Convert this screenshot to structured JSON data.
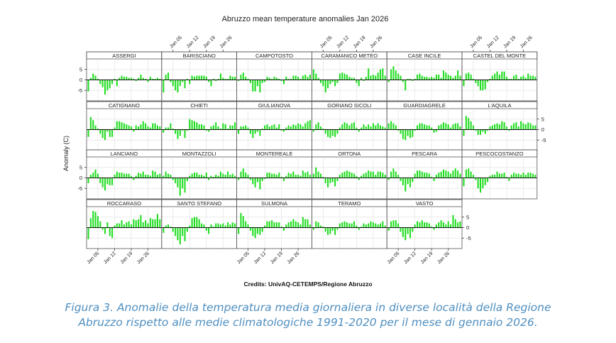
{
  "chart_data": {
    "type": "bar",
    "title": "Abruzzo mean temperature anomalies Jan 2026",
    "ylabel": "Anomaly (C)",
    "xlabel": "",
    "credits": "Credits: UnivAQ-CETEMPS/Regione Abruzzo",
    "ylim": [
      -10,
      10
    ],
    "yticks": [
      -5,
      0,
      5
    ],
    "ytick_labels": [
      "-5",
      "0",
      "5"
    ],
    "xlim": [
      1,
      31
    ],
    "xticks": [
      5,
      12,
      19,
      26
    ],
    "xtick_labels": [
      "Jan 05",
      "Jan 12",
      "Jan 19",
      "Jan 26"
    ],
    "bar_color": "#22dd22",
    "panels": [
      {
        "station": "ASSERGI",
        "values": [
          -5.5,
          1,
          3,
          2,
          0.5,
          -2,
          -3.5,
          -7,
          -5,
          -4,
          -2,
          0.5,
          -3,
          1,
          2,
          1.5,
          1.5,
          1,
          1,
          0.5,
          -0.5,
          1,
          2.5,
          1,
          0.5,
          -1,
          1.5,
          0.5,
          0.5,
          1,
          0.5
        ]
      },
      {
        "station": "BARISCIANO",
        "values": [
          -6,
          2.5,
          3.5,
          -1,
          -3,
          -5,
          -6,
          -3,
          -1,
          -4,
          0.5,
          -2,
          2,
          1.5,
          2,
          2,
          2,
          2,
          1.5,
          -1,
          -3,
          0.5,
          -0.5,
          0.5,
          3,
          1,
          0.5,
          0.5,
          2,
          1.5,
          1.5
        ]
      },
      {
        "station": "CAMPOTOSTO",
        "values": [
          -0.5,
          2.5,
          3.5,
          1.5,
          0.5,
          -1.5,
          -5.5,
          -5.5,
          -3,
          -6,
          -1.5,
          -1,
          1.5,
          1,
          0.5,
          1.5,
          1,
          0.5,
          -0.5,
          -2,
          1.5,
          0.5,
          0.5,
          2,
          2,
          1.5,
          0.5,
          2,
          2.5,
          1.5,
          2.5
        ]
      },
      {
        "station": "CARAMANICO METEO",
        "values": [
          5,
          3,
          1,
          -1.5,
          -3,
          -6,
          -4,
          -2,
          -1,
          -3,
          -1.5,
          3,
          3.5,
          3,
          2.5,
          1.5,
          1,
          1,
          -1.5,
          -3,
          1,
          -0.5,
          1.5,
          5.5,
          2,
          2.5,
          2,
          3.5,
          5,
          5.5,
          2
        ]
      },
      {
        "station": "CASE INCILE",
        "values": [
          -1,
          5,
          6.5,
          4.5,
          3,
          2,
          -1,
          -5,
          0.5,
          0.5,
          -0.5,
          0.5,
          2.5,
          3,
          2,
          1.5,
          1.5,
          1,
          1.5,
          1,
          2.5,
          2.5,
          1,
          4.5,
          3.5,
          2.5,
          2,
          1,
          2,
          4.5,
          2
        ]
      },
      {
        "station": "CASTEL DEL MONTE",
        "values": [
          -3,
          3,
          3.5,
          2.5,
          0.5,
          -1.5,
          -3,
          -5,
          -5,
          -4.5,
          -1,
          0.5,
          2,
          3,
          4,
          2.5,
          4,
          4,
          1.5,
          0.5,
          0.5,
          2,
          2.5,
          0.5,
          1.5,
          2,
          1,
          3,
          2,
          2,
          1.5
        ]
      },
      {
        "station": "CATIGNANO",
        "values": [
          -3.5,
          6,
          4.5,
          2,
          0.5,
          -2,
          -4,
          -5,
          -1,
          -3.5,
          -3.5,
          1,
          4,
          4,
          3.5,
          3,
          2.5,
          2,
          1.5,
          -1,
          2,
          1.5,
          2.5,
          4,
          3,
          1.5,
          1,
          3,
          3,
          2,
          1.5
        ]
      },
      {
        "station": "CHIETI",
        "values": [
          -1.5,
          1,
          1,
          3,
          0.5,
          -2,
          -4.5,
          -3,
          -0.5,
          -4,
          -0.5,
          5,
          4.5,
          4,
          3.5,
          2.5,
          2.5,
          2,
          -0.5,
          -1,
          1.5,
          2,
          3.5,
          1.5,
          0.5,
          3,
          2.5,
          0.5,
          2,
          2,
          3.5
        ]
      },
      {
        "station": "GIULIANOVA",
        "values": [
          -2,
          1.5,
          1.5,
          2,
          1,
          -2,
          -4,
          -2,
          -1,
          -3,
          0.5,
          2,
          2.5,
          1.5,
          2,
          2.5,
          1,
          2.5,
          -0.5,
          -1,
          1,
          2,
          1.5,
          2.5,
          2,
          3,
          2.5,
          1.5,
          3,
          4,
          4.5
        ]
      },
      {
        "station": "GORIANO SICOLI",
        "values": [
          -1,
          2.5,
          3.5,
          1.5,
          0.5,
          -2,
          -3.5,
          -4,
          -3,
          -3.5,
          -2,
          1,
          2.5,
          3.5,
          3,
          2,
          3,
          3.5,
          1,
          -1,
          1,
          2.5,
          1.5,
          2.5,
          1.5,
          3,
          2,
          3,
          2,
          1.5,
          1
        ]
      },
      {
        "station": "GUARDIAGRELE",
        "values": [
          3,
          4,
          3,
          2,
          -0.5,
          -2,
          -4.5,
          -5,
          -3,
          -4,
          -3.5,
          -0.5,
          2,
          3,
          3,
          2.5,
          2,
          2,
          1,
          -1.5,
          -1,
          2,
          2.5,
          3.5,
          3,
          2.5,
          1,
          2.5,
          3,
          3,
          1.5
        ]
      },
      {
        "station": "L'AQUILA",
        "values": [
          -3,
          6.5,
          5.5,
          4,
          2,
          -0.5,
          -2.5,
          -2.5,
          -1,
          -2,
          -0.5,
          1.5,
          2,
          2.5,
          3,
          2.5,
          4,
          3.5,
          1.5,
          -0.5,
          2,
          3,
          3.5,
          1.5,
          4,
          3,
          2.5,
          3.5,
          3,
          2,
          2
        ]
      },
      {
        "station": "LANCIANO",
        "values": [
          -2.5,
          1.5,
          2.5,
          4,
          2,
          -2.5,
          -4.5,
          -6,
          -3,
          -3.5,
          -3.5,
          1.5,
          3,
          2.5,
          2.5,
          2,
          2,
          2,
          1,
          -1,
          1,
          2.5,
          2,
          3,
          1.5,
          1.5,
          1,
          3.5,
          3,
          1.5,
          2
        ]
      },
      {
        "station": "MONTAZZOLI",
        "values": [
          1,
          3,
          2,
          1.5,
          -1,
          -2.5,
          -4.5,
          -8.5,
          -5,
          -7,
          -1.5,
          1,
          2,
          2.5,
          2.5,
          1.5,
          1.5,
          1,
          2.5,
          -1,
          1,
          0.5,
          1.5,
          1,
          3,
          2,
          1.5,
          3,
          1.5,
          2,
          1
        ]
      },
      {
        "station": "MONTEREALE",
        "values": [
          -1,
          3,
          4.5,
          2.5,
          1.5,
          -1,
          -3,
          -4.5,
          -2,
          -5.5,
          -1.5,
          -0.5,
          2.5,
          2.5,
          2,
          2,
          1.5,
          2.5,
          0.5,
          -1.5,
          1,
          2.5,
          2,
          3,
          1.5,
          1.5,
          1,
          3.5,
          2.5,
          3,
          1.5
        ]
      },
      {
        "station": "ORTONA",
        "values": [
          2,
          5,
          3,
          2,
          0.5,
          -2.5,
          -4.5,
          -2.5,
          -2,
          -4,
          -1.5,
          1.5,
          2.5,
          3,
          3.5,
          3,
          2.5,
          2,
          1,
          -1,
          1,
          2,
          2.5,
          3.5,
          3,
          3,
          1.5,
          3,
          3,
          2.5,
          1.5
        ]
      },
      {
        "station": "PESCARA",
        "values": [
          -1,
          3,
          4.5,
          3,
          1.5,
          -1.5,
          -3.5,
          -6.5,
          -3,
          -4.5,
          -2,
          2,
          3.5,
          3.5,
          3,
          2.5,
          2.5,
          2,
          0.5,
          -1.5,
          1.5,
          2.5,
          3,
          4,
          3.5,
          3,
          2,
          3.5,
          4.5,
          3.5,
          2
        ]
      },
      {
        "station": "PESCOCOSTANZO",
        "values": [
          -4,
          4,
          4.5,
          3,
          1.5,
          -1,
          -5,
          -7,
          -5,
          -3.5,
          -2,
          1,
          1.5,
          1.5,
          3,
          2,
          2,
          2.5,
          0.5,
          -1.5,
          1.5,
          2.5,
          2,
          2,
          1.5,
          2.5,
          1.5,
          2.5,
          2.5,
          2,
          1.5
        ]
      },
      {
        "station": "ROCCARASO",
        "values": [
          -5.5,
          4.5,
          8,
          7.5,
          5.5,
          3,
          -1,
          -3,
          2.5,
          -4,
          -5,
          1,
          2,
          2,
          3.5,
          1.5,
          2.5,
          3,
          1.5,
          4,
          3.5,
          4,
          6,
          2.5,
          3.5,
          2,
          4.5,
          4,
          4,
          6.5,
          4
        ]
      },
      {
        "station": "SANTO STEFANO",
        "values": [
          -2.5,
          1,
          1.5,
          0.5,
          -2,
          -4,
          -6,
          -8,
          -4,
          -6.5,
          -2,
          1,
          4.5,
          5,
          5,
          4,
          2,
          1.5,
          -1.5,
          -3,
          1.5,
          0.5,
          2,
          2,
          1.5,
          2,
          1,
          2.5,
          1.5,
          2.5,
          2
        ]
      },
      {
        "station": "SULMONA",
        "values": [
          -3,
          7,
          5.5,
          3,
          1.5,
          -1.5,
          -4,
          -5,
          -3,
          -3.5,
          -2,
          1,
          3,
          3,
          3.5,
          2.5,
          2.5,
          2.5,
          0.5,
          -1.5,
          1.5,
          2.5,
          3,
          4,
          3,
          2.5,
          1.5,
          5,
          4,
          4,
          1.5
        ]
      },
      {
        "station": "TERAMO",
        "values": [
          -1,
          3,
          2.5,
          1,
          0.5,
          -2,
          -3.5,
          -3,
          -1.5,
          -3.5,
          -1,
          2,
          2.5,
          3,
          2.5,
          2,
          2,
          3,
          1,
          -1,
          0.5,
          2,
          1.5,
          2,
          3,
          2.5,
          2,
          1.5,
          2,
          3,
          1
        ]
      },
      {
        "station": "VASTO",
        "values": [
          -1.5,
          3,
          3.5,
          3.5,
          2,
          -2,
          -4.5,
          -6,
          -3,
          -5,
          -2,
          1.5,
          3,
          2.5,
          3.5,
          2.5,
          2.5,
          2,
          0.5,
          -1,
          1.5,
          2.5,
          3.5,
          2.5,
          1.5,
          3,
          1.5,
          6,
          4,
          2.5,
          3
        ]
      }
    ]
  },
  "caption": {
    "line1": "Figura 3. Anomalie della temperatura media giornaliera in diverse località della Regione",
    "line2": "Abruzzo rispetto alle medie climatologiche 1991-2020 per il mese di gennaio 2026."
  }
}
